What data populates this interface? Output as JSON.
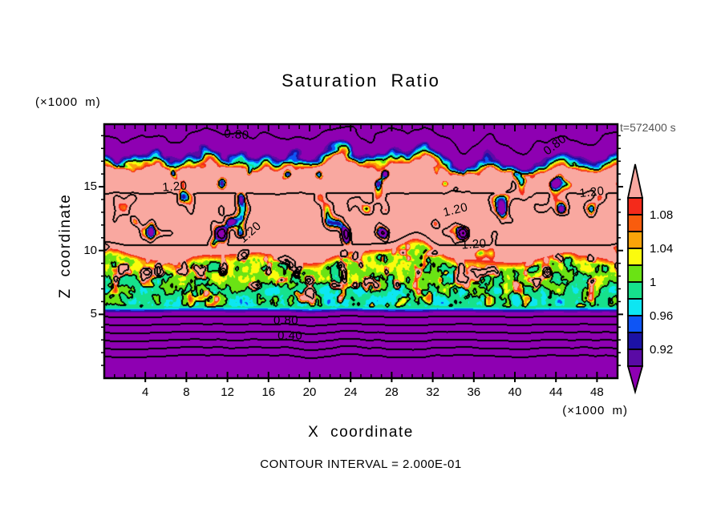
{
  "chart_data": {
    "type": "filled_contour",
    "title": "Saturation Ratio",
    "time_annotation": "t=572400 s",
    "x_axis": {
      "title": "X coordinate",
      "units": "(×1000 m)",
      "range": [
        0,
        50
      ],
      "major_ticks": [
        4,
        8,
        12,
        16,
        20,
        24,
        28,
        32,
        36,
        40,
        44,
        48
      ],
      "minor_tick_step": 1
    },
    "z_axis": {
      "title": "Z coordinate",
      "units": "(×1000 m)",
      "range": [
        0,
        19.9
      ],
      "major_ticks": [
        5,
        10,
        15
      ],
      "minor_tick_step": 1
    },
    "footer_note": "CONTOUR INTERVAL = 2.000E-01",
    "contour_interval": 0.2,
    "contour_line_color": "#000000",
    "colorbar": {
      "tick_labels": [
        {
          "text": "1.08",
          "level": 1.08
        },
        {
          "text": "1.04",
          "level": 1.04
        },
        {
          "text": "1",
          "level": 1.0
        },
        {
          "text": "0.96",
          "level": 0.96
        },
        {
          "text": "0.92",
          "level": 0.92
        }
      ],
      "band_min": 0.9,
      "band_step": 0.02,
      "band_colors_low_to_high": [
        "#5A0AA5",
        "#1C12A5",
        "#0E55F5",
        "#0DE6F2",
        "#16E18C",
        "#6AE314",
        "#FBFB0D",
        "#FBA309",
        "#F95C0D",
        "#F42A1B"
      ],
      "over_color": "#F9A8A0",
      "under_color": "#8E00B2"
    },
    "contour_labels": [
      {
        "text": "0.80",
        "x": 12.9,
        "z": 19.1,
        "rot": 4
      },
      {
        "text": "0.80",
        "x": 43.9,
        "z": 18.25,
        "rot": -38
      },
      {
        "text": "1.20",
        "x": 6.9,
        "z": 15.0,
        "rot": -4
      },
      {
        "text": "1.20",
        "x": 47.5,
        "z": 14.55,
        "rot": -6
      },
      {
        "text": "1.20",
        "x": 34.2,
        "z": 13.2,
        "rot": -14
      },
      {
        "text": "1.20",
        "x": 14.2,
        "z": 11.4,
        "rot": -42
      },
      {
        "text": "1.20",
        "x": 36.0,
        "z": 10.5,
        "rot": -4
      },
      {
        "text": "0.80",
        "x": 17.7,
        "z": 4.5,
        "rot": 0
      },
      {
        "text": "0.40",
        "x": 18.1,
        "z": 3.3,
        "rot": 0
      }
    ],
    "vertical_profile_knots": [
      [
        0,
        -0.32
      ],
      [
        1.4,
        -0.32
      ],
      [
        4.85,
        0.8
      ],
      [
        5.2,
        0.9
      ],
      [
        5.55,
        0.985
      ],
      [
        8.3,
        1.04
      ],
      [
        9.3,
        1.13
      ],
      [
        10,
        1.185
      ],
      [
        10.8,
        1.21
      ],
      [
        13.6,
        1.212
      ],
      [
        14.9,
        1.195
      ],
      [
        16.4,
        1.14
      ],
      [
        16.9,
        1.02
      ],
      [
        17.3,
        0.95
      ],
      [
        17.8,
        0.88
      ],
      [
        18.2,
        0.845
      ],
      [
        19,
        0.8
      ],
      [
        20,
        0.755
      ]
    ],
    "transition_features": [
      [
        14.8,
        0.6,
        0.9
      ],
      [
        16.8,
        0.65,
        0.8
      ],
      [
        27.2,
        0.4,
        0.8
      ],
      [
        35,
        0.9,
        1.0
      ],
      [
        40.5,
        1.25,
        1.3
      ],
      [
        5.2,
        -0.5,
        0.8
      ],
      [
        10,
        -0.6,
        1.0
      ],
      [
        23,
        -0.7,
        1.1
      ],
      [
        30.8,
        -0.95,
        1.1
      ],
      [
        37.5,
        -0.55,
        0.8
      ],
      [
        44.5,
        -0.55,
        0.9
      ],
      [
        49.8,
        -0.85,
        1.4
      ]
    ],
    "cloud_top_features": [
      [
        30.5,
        1.0,
        2.0
      ],
      [
        20,
        -0.5,
        1.5
      ],
      [
        7,
        -0.4,
        1.5
      ]
    ]
  }
}
